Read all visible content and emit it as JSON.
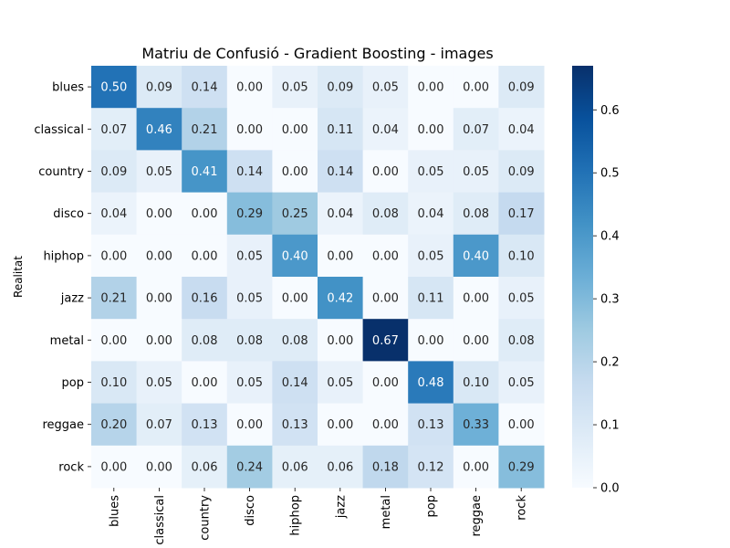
{
  "chart_data": {
    "type": "heatmap",
    "title": "Matriu de Confusió - Gradient Boosting - images",
    "ylabel": "Realitat",
    "xlabel": "",
    "categories": [
      "blues",
      "classical",
      "country",
      "disco",
      "hiphop",
      "jazz",
      "metal",
      "pop",
      "reggae",
      "rock"
    ],
    "values": [
      [
        0.5,
        0.09,
        0.14,
        0.0,
        0.05,
        0.09,
        0.05,
        0.0,
        0.0,
        0.09
      ],
      [
        0.07,
        0.46,
        0.21,
        0.0,
        0.0,
        0.11,
        0.04,
        0.0,
        0.07,
        0.04
      ],
      [
        0.09,
        0.05,
        0.41,
        0.14,
        0.0,
        0.14,
        0.0,
        0.05,
        0.05,
        0.09
      ],
      [
        0.04,
        0.0,
        0.0,
        0.29,
        0.25,
        0.04,
        0.08,
        0.04,
        0.08,
        0.17
      ],
      [
        0.0,
        0.0,
        0.0,
        0.05,
        0.4,
        0.0,
        0.0,
        0.05,
        0.4,
        0.1
      ],
      [
        0.21,
        0.0,
        0.16,
        0.05,
        0.0,
        0.42,
        0.0,
        0.11,
        0.0,
        0.05
      ],
      [
        0.0,
        0.0,
        0.08,
        0.08,
        0.08,
        0.0,
        0.67,
        0.0,
        0.0,
        0.08
      ],
      [
        0.1,
        0.05,
        0.0,
        0.05,
        0.14,
        0.05,
        0.0,
        0.48,
        0.1,
        0.05
      ],
      [
        0.2,
        0.07,
        0.13,
        0.0,
        0.13,
        0.0,
        0.0,
        0.13,
        0.33,
        0.0
      ],
      [
        0.0,
        0.0,
        0.06,
        0.24,
        0.06,
        0.06,
        0.18,
        0.12,
        0.0,
        0.29
      ]
    ],
    "colorbar": {
      "min": 0.0,
      "max": 0.67,
      "ticks": [
        "0.0",
        "0.1",
        "0.2",
        "0.3",
        "0.4",
        "0.5",
        "0.6"
      ],
      "colormap": "Blues"
    },
    "legend": "colorbar-right",
    "grid": false
  }
}
